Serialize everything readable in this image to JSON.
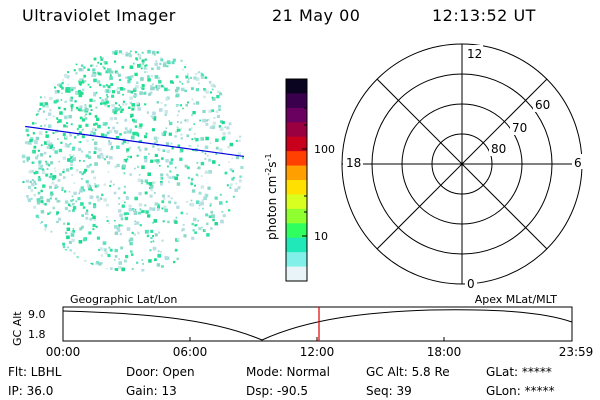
{
  "header": {
    "title": "Ultraviolet Imager",
    "date": "21 May 00",
    "time": "12:13:52 UT"
  },
  "colorbar": {
    "unit": "photon cm",
    "unit_sup1": "-2",
    "unit_mid": "s",
    "unit_sup2": "-1",
    "tick_100": "100",
    "tick_10": "10",
    "colors": [
      "#0b0420",
      "#3a004e",
      "#6a0060",
      "#9a0040",
      "#c8001c",
      "#ff4000",
      "#ffa000",
      "#ffe000",
      "#d8ff20",
      "#90ff30",
      "#30ff60",
      "#20e8b8",
      "#80f0e8",
      "#e8f4f8"
    ]
  },
  "polar": {
    "mlt_12": "12",
    "mlt_18": "18",
    "mlt_6": "6",
    "mlt_0": "0",
    "lat_60": "60",
    "lat_70": "70",
    "lat_80": "80"
  },
  "timeline": {
    "left_label": "Geographic Lat/Lon",
    "right_label": "Apex MLat/MLT",
    "axis_label": "GC Alt",
    "y_top": "9.0",
    "y_bottom": "1.8",
    "ticks": [
      "00:00",
      "06:00",
      "12:00",
      "18:00",
      "23:59"
    ]
  },
  "footer": {
    "flt": "Flt: LBHL",
    "door": "Door: Open",
    "mode": "Mode: Normal",
    "gcalt": "GC Alt: 5.8 Re",
    "glat": "GLat: *****",
    "ip": "IP: 36.0",
    "gain": "Gain: 13",
    "dsp": "Dsp:  -90.5",
    "seq": "Seq: 39",
    "glon": "GLon: *****"
  }
}
